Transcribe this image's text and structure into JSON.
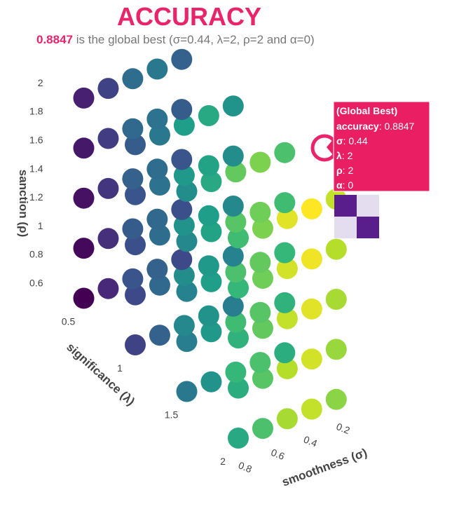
{
  "chart_data": {
    "type": "scatter3d",
    "title": "ACCURACY",
    "subtitle": {
      "best": "0.8847",
      "text": "is the global best (σ=0.44, λ=2, ρ=2 and α=0)"
    },
    "x_label": "smoothness (σ)",
    "y_label": "significance (λ)",
    "z_label": "sanction (ρ)",
    "xticks": [
      0.2,
      0.4,
      0.6,
      0.8
    ],
    "yticks": [
      0.5,
      1,
      1.5,
      2
    ],
    "zticks": [
      0.6,
      0.8,
      1,
      1.2,
      1.4,
      1.6,
      1.8,
      2
    ],
    "colorscale": "viridis",
    "x": [
      0.2,
      0.2,
      0.2,
      0.2,
      0.2,
      0.35,
      0.35,
      0.35,
      0.35,
      0.35,
      0.5,
      0.5,
      0.5,
      0.5,
      0.5,
      0.65,
      0.65,
      0.65,
      0.65,
      0.65,
      0.8,
      0.8,
      0.8,
      0.8,
      0.8,
      0.2,
      0.2,
      0.2,
      0.2,
      0.2,
      0.35,
      0.35,
      0.35,
      0.35,
      0.35,
      0.5,
      0.5,
      0.5,
      0.5,
      0.5,
      0.65,
      0.65,
      0.65,
      0.65,
      0.65,
      0.8,
      0.8,
      0.8,
      0.8,
      0.8,
      0.2,
      0.2,
      0.2,
      0.2,
      0.2,
      0.35,
      0.35,
      0.35,
      0.35,
      0.35,
      0.5,
      0.5,
      0.5,
      0.5,
      0.5,
      0.65,
      0.65,
      0.65,
      0.65,
      0.65,
      0.8,
      0.8,
      0.8,
      0.8,
      0.8,
      0.2,
      0.2,
      0.2,
      0.2,
      0.2,
      0.35,
      0.35,
      0.35,
      0.35,
      0.35,
      0.5,
      0.5,
      0.5,
      0.5,
      0.5,
      0.65,
      0.65,
      0.65,
      0.65,
      0.65,
      0.8,
      0.8,
      0.8,
      0.8,
      0.8
    ],
    "y": [
      0.5,
      0.5,
      0.5,
      0.5,
      0.5,
      0.5,
      0.5,
      0.5,
      0.5,
      0.5,
      0.5,
      0.5,
      0.5,
      0.5,
      0.5,
      0.5,
      0.5,
      0.5,
      0.5,
      0.5,
      0.5,
      0.5,
      0.5,
      0.5,
      0.5,
      1,
      1,
      1,
      1,
      1,
      1,
      1,
      1,
      1,
      1,
      1,
      1,
      1,
      1,
      1,
      1,
      1,
      1,
      1,
      1,
      1,
      1,
      1,
      1,
      1,
      1.5,
      1.5,
      1.5,
      1.5,
      1.5,
      1.5,
      1.5,
      1.5,
      1.5,
      1.5,
      1.5,
      1.5,
      1.5,
      1.5,
      1.5,
      1.5,
      1.5,
      1.5,
      1.5,
      1.5,
      1.5,
      1.5,
      1.5,
      1.5,
      1.5,
      2,
      2,
      2,
      2,
      2,
      2,
      2,
      2,
      2,
      2,
      2,
      2,
      2,
      2,
      2,
      2,
      2,
      2,
      2,
      2,
      2,
      2,
      2,
      2,
      2
    ],
    "z": [
      0.6,
      0.95,
      1.3,
      1.65,
      2,
      0.6,
      0.95,
      1.3,
      1.65,
      2,
      0.6,
      0.95,
      1.3,
      1.65,
      2,
      0.6,
      0.95,
      1.3,
      1.65,
      2,
      0.6,
      0.95,
      1.3,
      1.65,
      2,
      0.6,
      0.95,
      1.3,
      1.65,
      2,
      0.6,
      0.95,
      1.3,
      1.65,
      2,
      0.6,
      0.95,
      1.3,
      1.65,
      2,
      0.6,
      0.95,
      1.3,
      1.65,
      2,
      0.6,
      0.95,
      1.3,
      1.65,
      2,
      0.6,
      0.95,
      1.3,
      1.65,
      2,
      0.6,
      0.95,
      1.3,
      1.65,
      2,
      0.6,
      0.95,
      1.3,
      1.65,
      2,
      0.6,
      0.95,
      1.3,
      1.65,
      2,
      0.6,
      0.95,
      1.3,
      1.65,
      2,
      0.6,
      0.95,
      1.3,
      1.65,
      2,
      0.6,
      0.95,
      1.3,
      1.65,
      2,
      0.6,
      0.95,
      1.3,
      1.65,
      2,
      0.6,
      0.95,
      1.3,
      1.65,
      2,
      0.6,
      0.95,
      1.3,
      1.65,
      2
    ],
    "values": [
      0.53,
      0.54,
      0.55,
      0.56,
      0.57,
      0.57,
      0.58,
      0.59,
      0.6,
      0.61,
      0.55,
      0.56,
      0.57,
      0.58,
      0.59,
      0.48,
      0.49,
      0.5,
      0.51,
      0.52,
      0.43,
      0.44,
      0.45,
      0.46,
      0.47,
      0.62,
      0.63,
      0.64,
      0.65,
      0.66,
      0.66,
      0.67,
      0.68,
      0.69,
      0.7,
      0.64,
      0.65,
      0.66,
      0.67,
      0.68,
      0.57,
      0.58,
      0.59,
      0.6,
      0.61,
      0.52,
      0.53,
      0.54,
      0.55,
      0.56,
      0.71,
      0.72,
      0.73,
      0.74,
      0.75,
      0.75,
      0.76,
      0.77,
      0.78,
      0.79,
      0.73,
      0.74,
      0.75,
      0.76,
      0.77,
      0.66,
      0.67,
      0.68,
      0.69,
      0.7,
      0.61,
      0.62,
      0.63,
      0.64,
      0.65,
      0.8,
      0.81,
      0.82,
      0.83,
      0.84,
      0.84,
      0.85,
      0.86,
      0.87,
      0.88,
      0.82,
      0.83,
      0.84,
      0.85,
      0.86,
      0.75,
      0.76,
      0.77,
      0.78,
      0.79,
      0.7,
      0.71,
      0.72,
      0.73,
      0.74
    ],
    "tooltip": {
      "title": "(Global Best)",
      "rows": [
        {
          "label": "accuracy",
          "value": 0.8847
        },
        {
          "label": "σ",
          "value": 0.44
        },
        {
          "label": "λ",
          "value": 2
        },
        {
          "label": "ρ",
          "value": 2
        },
        {
          "label": "α",
          "value": 0
        }
      ]
    }
  }
}
